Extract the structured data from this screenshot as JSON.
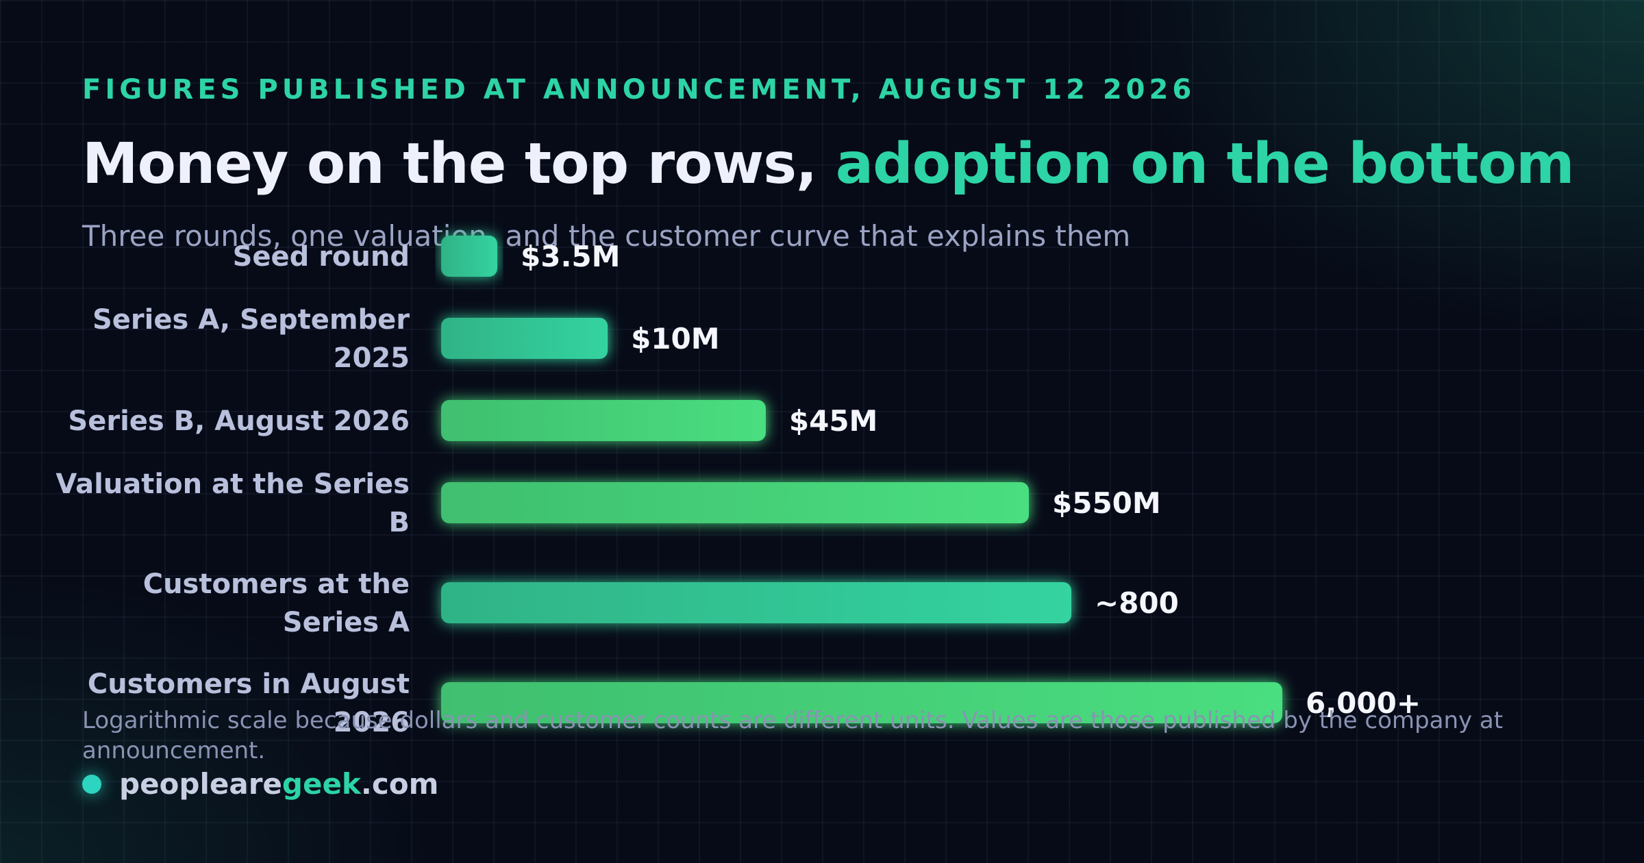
{
  "header": {
    "eyebrow": "FIGURES PUBLISHED AT ANNOUNCEMENT, AUGUST 12 2026",
    "title_main": "Money on the top rows, ",
    "title_accent": "adoption on the bottom",
    "subtitle": "Three rounds, one valuation, and the customer curve that explains them"
  },
  "chart_data": {
    "type": "bar",
    "orientation": "horizontal",
    "scale": "log",
    "grid": false,
    "categories": [
      "Seed round",
      "Series A, September 2025",
      "Series B, August 2026",
      "Valuation at the Series B",
      "Customers at the Series A",
      "Customers in August 2026"
    ],
    "values": [
      3500000,
      10000000,
      45000000,
      550000000,
      800,
      6000
    ],
    "value_labels": [
      "$3.5M",
      "$10M",
      "$45M",
      "$550M",
      "~800",
      "6,000+"
    ],
    "label_lines": [
      [
        "Seed round"
      ],
      [
        "Series A, September",
        "2025"
      ],
      [
        "Series B, August 2026"
      ],
      [
        "Valuation at the Series",
        "B"
      ],
      [
        "Customers at the",
        "Series A"
      ],
      [
        "Customers in August",
        "2026"
      ]
    ],
    "group_colors": {
      "money": [
        "#2fb386",
        "#34d3a0"
      ],
      "adoption": [
        "#3fbf6f",
        "#4ade80"
      ]
    },
    "bar_colors": [
      [
        "#2fb386",
        "#34d3a0"
      ],
      [
        "#2fb386",
        "#34d3a0"
      ],
      [
        "#3fbf6f",
        "#4ade80"
      ],
      [
        "#3fbf6f",
        "#4ade80"
      ],
      [
        "#2fb386",
        "#34d3a0"
      ],
      [
        "#3fbf6f",
        "#4ade80"
      ]
    ]
  },
  "footer": {
    "note": "Logarithmic scale because dollars and customer counts are different units. Values are those published by the company at announcement.",
    "brand_prefix": "peopleare",
    "brand_accent": "geek",
    "brand_suffix": ".com"
  },
  "colors": {
    "accent": "#2dd4a5",
    "background": "#070b18",
    "label": "#b8c0dc",
    "value": "#f4f6fc"
  }
}
